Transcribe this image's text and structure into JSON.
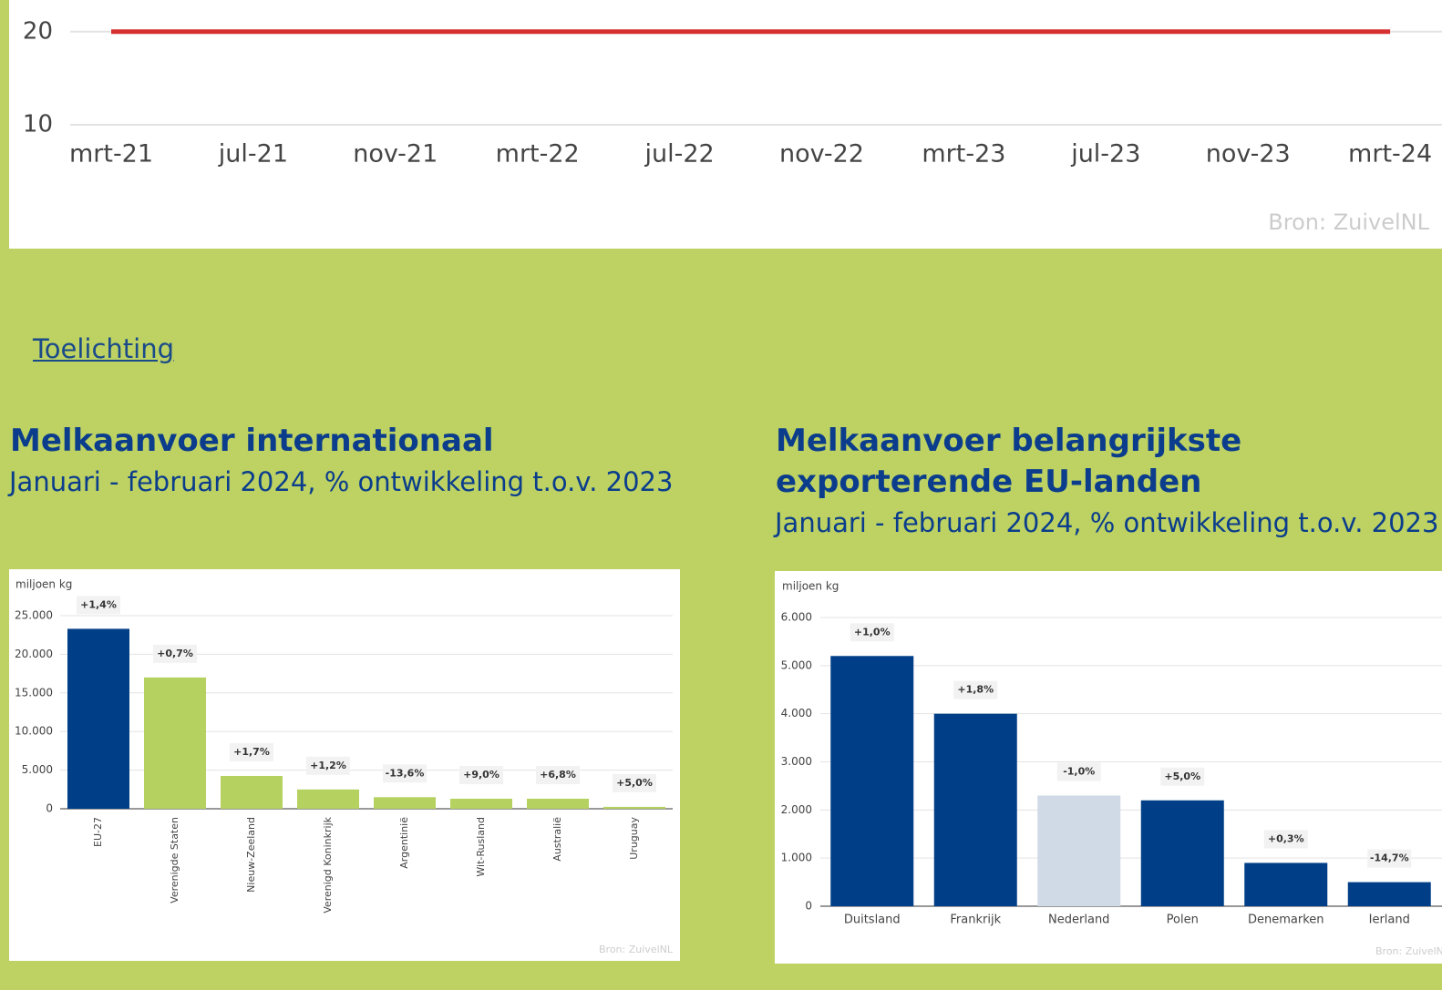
{
  "page": {
    "link": "Toelichting"
  },
  "chart_data": [
    {
      "type": "line",
      "categories": [
        "mrt-21",
        "jul-21",
        "nov-21",
        "mrt-22",
        "jul-22",
        "nov-22",
        "mrt-23",
        "jul-23",
        "nov-23",
        "mrt-24"
      ],
      "series": [
        {
          "color": "#d63031",
          "values": [
            20,
            20,
            20,
            20,
            20,
            20,
            20,
            20,
            20,
            20
          ]
        }
      ],
      "ylim": [
        10,
        23.4
      ],
      "yticks": [
        10,
        20
      ],
      "grid": true,
      "source": "Bron:  ZuivelNL"
    },
    {
      "type": "bar",
      "title": "Melkaanvoer internationaal",
      "subtitle": "Januari - februari 2024, % ontwikkeling t.o.v. 2023",
      "y_label": "miljoen kg",
      "categories": [
        "EU-27",
        "Verenigde Staten",
        "Nieuw-Zeeland",
        "Verenigd Koninkrijk",
        "Argentinië",
        "Wit-Rusland",
        "Australië",
        "Uruguay"
      ],
      "values": [
        23300,
        17000,
        4250,
        2500,
        1500,
        1300,
        1300,
        250
      ],
      "colors": [
        "#003f87",
        "#b5d160",
        "#b5d160",
        "#b5d160",
        "#b5d160",
        "#b5d160",
        "#b5d160",
        "#b5d160"
      ],
      "change_labels": [
        "+1,4%",
        "+0,7%",
        "+1,7%",
        "+1,2%",
        "-13,6%",
        "+9,0%",
        "+6,8%",
        "+5,0%"
      ],
      "ylim": [
        0,
        25000
      ],
      "yticks": [
        0,
        {
          "value": 5000,
          "label": "5.000"
        },
        {
          "value": 10000,
          "label": "10.000"
        },
        {
          "value": 15000,
          "label": "15.000"
        },
        {
          "value": 20000,
          "label": "20.000"
        },
        {
          "value": 25000,
          "label": "25.000"
        }
      ],
      "grid": true,
      "source": "Bron:  ZuivelNL"
    },
    {
      "type": "bar",
      "title": "Melkaanvoer belangrijkste exporterende EU-landen",
      "subtitle": "Januari - februari 2024, % ontwikkeling t.o.v. 2023",
      "y_label": "miljoen kg",
      "categories": [
        "Duitsland",
        "Frankrijk",
        "Nederland",
        "Polen",
        "Denemarken",
        "Ierland"
      ],
      "values": [
        5200,
        4000,
        2300,
        2200,
        900,
        500
      ],
      "colors": [
        "#003f87",
        "#003f87",
        "#d0dae6",
        "#003f87",
        "#003f87",
        "#003f87"
      ],
      "change_labels": [
        "+1,0%",
        "+1,8%",
        "-1,0%",
        "+5,0%",
        "+0,3%",
        "-14,7%"
      ],
      "ylim": [
        0,
        6000
      ],
      "yticks": [
        0,
        {
          "value": 1000,
          "label": "1.000"
        },
        {
          "value": 2000,
          "label": "2.000"
        },
        {
          "value": 3000,
          "label": "3.000"
        },
        {
          "value": 4000,
          "label": "4.000"
        },
        {
          "value": 5000,
          "label": "5.000"
        },
        {
          "value": 6000,
          "label": "6.000"
        }
      ],
      "grid": true,
      "source": "Bron:  ZuivelNL"
    }
  ]
}
